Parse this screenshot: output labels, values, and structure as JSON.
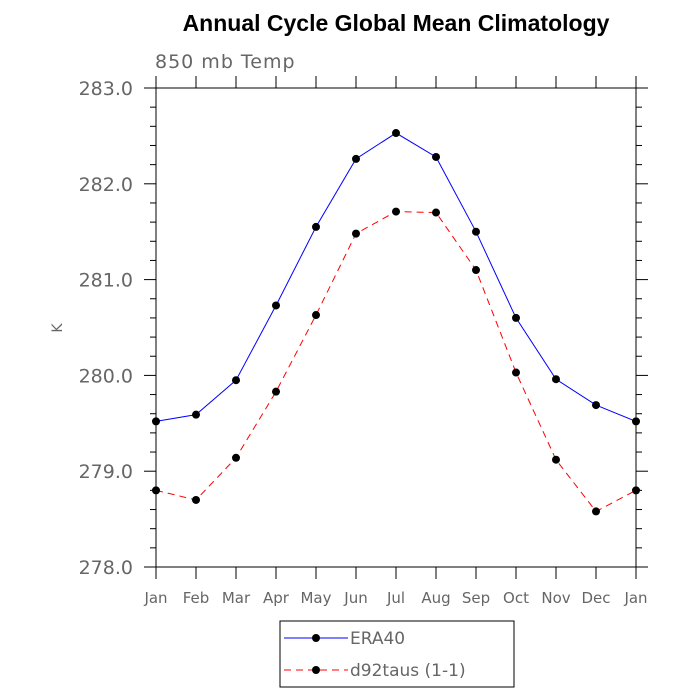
{
  "chart_data": {
    "type": "line",
    "title": "Annual Cycle Global Mean Climatology",
    "subtitle": "850 mb Temp",
    "xlabel": "",
    "ylabel": "K",
    "categories": [
      "Jan",
      "Feb",
      "Mar",
      "Apr",
      "May",
      "Jun",
      "Jul",
      "Aug",
      "Sep",
      "Oct",
      "Nov",
      "Dec",
      "Jan"
    ],
    "ylim": [
      278.0,
      283.0
    ],
    "yticks": [
      "278.0",
      "279.0",
      "280.0",
      "281.0",
      "282.0",
      "283.0"
    ],
    "ytick_values": [
      278.0,
      279.0,
      280.0,
      281.0,
      282.0,
      283.0
    ],
    "grid": false,
    "legend_position": "bottom",
    "series": [
      {
        "name": "ERA40",
        "color": "#0000ff",
        "line_style": "solid",
        "marker": "filled-circle",
        "values": [
          279.52,
          279.59,
          279.95,
          280.73,
          281.55,
          282.26,
          282.53,
          282.28,
          281.5,
          280.6,
          279.96,
          279.69,
          279.52
        ]
      },
      {
        "name": "d92taus (1-1)",
        "color": "#ff0000",
        "line_style": "dashed",
        "marker": "filled-circle",
        "values": [
          278.8,
          278.7,
          279.14,
          279.83,
          280.63,
          281.48,
          281.71,
          281.7,
          281.1,
          280.03,
          279.12,
          278.58,
          278.8
        ]
      }
    ]
  }
}
